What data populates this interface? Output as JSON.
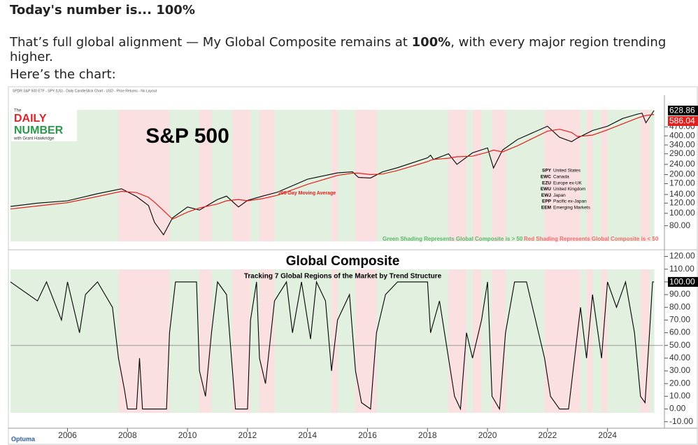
{
  "header": {
    "title": "Today's number is... 100%",
    "intro": [
      "That’s full global alignment — My Global Composite remains at ",
      "100%",
      ", with every major region trending higher."
    ],
    "lead": "Here’s the chart:"
  },
  "chart_header": "SPDR S&P 500 ETF - SPY (US) - Daily CandleStick Chart - USD - Price Returns - No Layout",
  "logo": {
    "small": "The",
    "line1": "DAILY",
    "line2": "NUMBER",
    "byline": "with Grant Hawkridge"
  },
  "footer_logo": "Optuma",
  "regions": [
    {
      "ticker": "SPY",
      "label": "United States"
    },
    {
      "ticker": "EWC",
      "label": "Canada"
    },
    {
      "ticker": "EZU",
      "label": "Europe ex-UK"
    },
    {
      "ticker": "EWU",
      "label": "United Kingdom"
    },
    {
      "ticker": "EWJ",
      "label": "Japan"
    },
    {
      "ticker": "EPP",
      "label": "Pacific ex-Japan"
    },
    {
      "ticker": "EEM",
      "label": "Emerging Markets"
    }
  ],
  "shading_notes": [
    "Green Shading Represents Global Composite is > 50",
    "Red Shading Represents Global Composite is < 50"
  ],
  "chart_data": [
    {
      "type": "line",
      "title": "S&P 500",
      "log_scale": true,
      "shading": true,
      "x": [
        2004.1,
        2005,
        2006,
        2007,
        2007.8,
        2008.3,
        2008.7,
        2008.9,
        2009.2,
        2009.5,
        2010,
        2010.4,
        2011,
        2011.3,
        2011.7,
        2012,
        2012.5,
        2013,
        2014,
        2015,
        2015.5,
        2015.7,
        2016.1,
        2016.5,
        2017,
        2018,
        2018.1,
        2018.2,
        2018.7,
        2018.98,
        2019.5,
        2020,
        2020.2,
        2020.5,
        2021,
        2022,
        2022.4,
        2022.8,
        2023,
        2023.5,
        2024,
        2024.5,
        2025,
        2025.15,
        2025.28,
        2025.55
      ],
      "series": [
        {
          "color": "#000000",
          "values": [
            113,
            120,
            125,
            142,
            155,
            135,
            115,
            85,
            68,
            92,
            112,
            106,
            128,
            136,
            112,
            126,
            136,
            146,
            184,
            206,
            210,
            190,
            188,
            210,
            226,
            270,
            283,
            262,
            290,
            240,
            295,
            322,
            225,
            310,
            375,
            475,
            390,
            360,
            385,
            440,
            475,
            545,
            590,
            600,
            505,
            628.86
          ],
          "value_labels": [
            null,
            null,
            null,
            null,
            null,
            null,
            null,
            null,
            null,
            null,
            null,
            null,
            null,
            null,
            null,
            null,
            null,
            null,
            null,
            null,
            null,
            null,
            null,
            null,
            null,
            null,
            null,
            null,
            null,
            null,
            null,
            null,
            null,
            null,
            null,
            null,
            null,
            null,
            null,
            null,
            null,
            null,
            null,
            null,
            null,
            "628.86"
          ]
        },
        {
          "name": "200-Day Moving Average",
          "color": "#e0201c",
          "values": [
            108,
            114,
            121,
            135,
            148,
            145,
            133,
            122,
            105,
            90,
            102,
            110,
            118,
            125,
            128,
            125,
            130,
            138,
            168,
            197,
            205,
            205,
            200,
            202,
            215,
            252,
            258,
            262,
            268,
            275,
            278,
            298,
            310,
            300,
            335,
            435,
            450,
            425,
            395,
            405,
            445,
            495,
            550,
            565,
            575,
            586.04
          ],
          "value_labels": [
            null,
            null,
            null,
            null,
            null,
            null,
            null,
            null,
            null,
            null,
            null,
            null,
            null,
            null,
            null,
            null,
            null,
            null,
            null,
            null,
            null,
            null,
            null,
            null,
            null,
            null,
            null,
            null,
            null,
            null,
            null,
            null,
            null,
            null,
            null,
            null,
            null,
            null,
            null,
            null,
            null,
            null,
            null,
            null,
            null,
            "586.04"
          ]
        }
      ],
      "xlim": [
        2004.1,
        2025.85
      ],
      "ylim": [
        66,
        740
      ],
      "yticks": [
        {
          "value": 470,
          "label": "470.00"
        },
        {
          "value": 400,
          "label": "400.00"
        },
        {
          "value": 340,
          "label": "340.00"
        },
        {
          "value": 290,
          "label": "290.00"
        },
        {
          "value": 240,
          "label": "240.00"
        },
        {
          "value": 200,
          "label": "200.00"
        },
        {
          "value": 170,
          "label": "170.00"
        },
        {
          "value": 140,
          "label": "140.00"
        },
        {
          "value": 120,
          "label": "120.00"
        },
        {
          "value": 100,
          "label": "100.00"
        },
        {
          "value": 80,
          "label": "80.00"
        }
      ]
    },
    {
      "type": "line",
      "title": "Global Composite",
      "subtitle": "Tracking 7 Global Regions of the Market by Trend Structure",
      "shading": true,
      "threshold": 50,
      "shade_above_color": "#e2f0e0",
      "shade_below_color": "#fbe0e2",
      "x": [
        2004.1,
        2005,
        2005.3,
        2005.8,
        2006,
        2006.4,
        2006.6,
        2007,
        2007.5,
        2007.7,
        2007.9,
        2008,
        2008.3,
        2008.4,
        2008.5,
        2009,
        2009.3,
        2009.4,
        2009.6,
        2010.3,
        2010.4,
        2010.6,
        2010.8,
        2011,
        2011.3,
        2011.5,
        2011.6,
        2012,
        2012.1,
        2012.3,
        2012.4,
        2012.6,
        2012.9,
        2013.3,
        2013.5,
        2013.8,
        2014.1,
        2014.3,
        2014.6,
        2014.8,
        2015,
        2015.4,
        2015.6,
        2015.8,
        2016.1,
        2016.3,
        2016.6,
        2017,
        2017.5,
        2018,
        2018.1,
        2018.4,
        2018.7,
        2018.9,
        2019.1,
        2019.3,
        2019.5,
        2019.8,
        2020,
        2020.15,
        2020.4,
        2020.6,
        2020.9,
        2021.3,
        2021.6,
        2021.9,
        2022.1,
        2022.4,
        2022.7,
        2022.9,
        2023.1,
        2023.3,
        2023.5,
        2023.8,
        2024,
        2024.3,
        2024.6,
        2024.9,
        2025.1,
        2025.25,
        2025.4,
        2025.5,
        2025.55
      ],
      "series": [
        {
          "color": "#000000",
          "values": [
            100,
            85,
            100,
            70,
            100,
            60,
            90,
            100,
            80,
            40,
            15,
            0,
            0,
            40,
            0,
            0,
            0,
            60,
            100,
            100,
            30,
            10,
            60,
            100,
            90,
            30,
            0,
            0,
            70,
            100,
            40,
            20,
            85,
            100,
            60,
            100,
            55,
            100,
            85,
            30,
            70,
            90,
            30,
            5,
            0,
            60,
            90,
            100,
            100,
            100,
            60,
            85,
            40,
            10,
            0,
            60,
            40,
            70,
            100,
            10,
            0,
            60,
            100,
            100,
            70,
            40,
            10,
            0,
            0,
            40,
            80,
            40,
            90,
            40,
            100,
            80,
            100,
            60,
            10,
            5,
            60,
            100,
            100
          ],
          "value_labels": [
            null,
            null,
            null,
            null,
            null,
            null,
            null,
            null,
            null,
            null,
            null,
            null,
            null,
            null,
            null,
            null,
            null,
            null,
            null,
            null,
            null,
            null,
            null,
            null,
            null,
            null,
            null,
            null,
            null,
            null,
            null,
            null,
            null,
            null,
            null,
            null,
            null,
            null,
            null,
            null,
            null,
            null,
            null,
            null,
            null,
            null,
            null,
            null,
            null,
            null,
            null,
            null,
            null,
            null,
            null,
            null,
            null,
            null,
            null,
            null,
            null,
            null,
            null,
            null,
            null,
            null,
            null,
            null,
            null,
            null,
            null,
            null,
            null,
            null,
            null,
            null,
            null,
            null,
            null,
            null,
            null,
            null,
            "100.00"
          ]
        }
      ],
      "xlim": [
        2004.1,
        2025.85
      ],
      "ylim": [
        -14,
        122.5
      ],
      "xticks": [
        2006,
        2008,
        2010,
        2012,
        2014,
        2016,
        2018,
        2020,
        2022,
        2024
      ],
      "yticks": [
        {
          "value": 120,
          "label": "120.00"
        },
        {
          "value": 110,
          "label": "110.00"
        },
        {
          "value": 100,
          "label": "100.00"
        },
        {
          "value": 90,
          "label": "90.00"
        },
        {
          "value": 80,
          "label": "80.00"
        },
        {
          "value": 70,
          "label": "70.00"
        },
        {
          "value": 60,
          "label": "60.00"
        },
        {
          "value": 50,
          "label": "50.00"
        },
        {
          "value": 40,
          "label": "40.00"
        },
        {
          "value": 30,
          "label": "30.00"
        },
        {
          "value": 20,
          "label": "20.00"
        },
        {
          "value": 10,
          "label": "10.00"
        },
        {
          "value": 0,
          "label": "0.00"
        },
        {
          "value": -10,
          "label": "-10.00"
        }
      ]
    }
  ]
}
